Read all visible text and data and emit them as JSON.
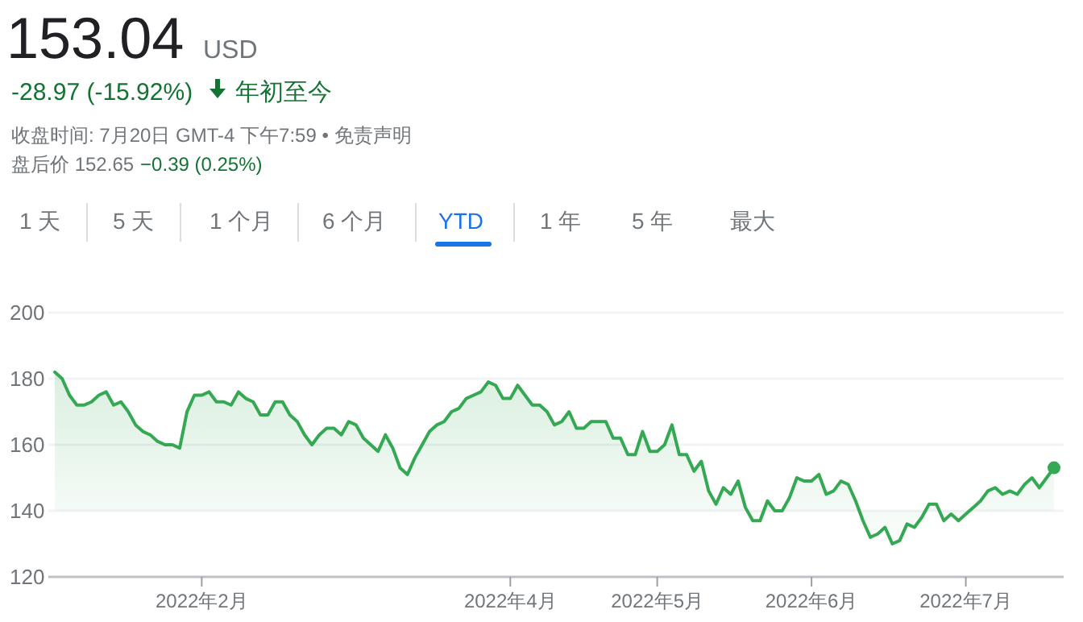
{
  "chart_data": {
    "type": "line",
    "title": "153.04",
    "annotations": [
      "USD",
      "-28.97 (-15.92%)",
      "年初至今",
      "收盘时间: 7月20日 GMT-4 下午7:59 • 免责声明",
      "盘后价 152.65",
      "−0.39 (0.25%)",
      "1 天",
      "5 天",
      "1 个月",
      "6 个月",
      "YTD",
      "1 年",
      "5 年",
      "最大"
    ],
    "categories": [
      null,
      null,
      null,
      null,
      null,
      null,
      null,
      null,
      null,
      null,
      null,
      null,
      null,
      null,
      null,
      null,
      null,
      null,
      null,
      null,
      "2022年2月",
      null,
      null,
      null,
      null,
      null,
      null,
      null,
      null,
      null,
      null,
      null,
      null,
      null,
      null,
      null,
      null,
      null,
      null,
      null,
      null,
      null,
      null,
      null,
      null,
      null,
      null,
      null,
      null,
      null,
      null,
      null,
      null,
      null,
      null,
      null,
      null,
      null,
      null,
      null,
      null,
      null,
      "2022年4月",
      null,
      null,
      null,
      null,
      null,
      null,
      null,
      null,
      null,
      null,
      null,
      null,
      null,
      null,
      null,
      null,
      null,
      null,
      null,
      "2022年5月",
      null,
      null,
      null,
      null,
      null,
      null,
      null,
      null,
      null,
      null,
      null,
      null,
      null,
      null,
      null,
      null,
      null,
      null,
      null,
      null,
      "2022年6月",
      null,
      null,
      null,
      null,
      null,
      null,
      null,
      null,
      null,
      null,
      null,
      null,
      null,
      null,
      null,
      null,
      null,
      null,
      null,
      null,
      "2022年7月",
      null,
      null,
      null,
      null,
      null,
      null,
      null,
      null,
      null,
      null,
      null,
      null
    ],
    "series": [
      {
        "color": "#34a853",
        "values": [
          182,
          180,
          175,
          172,
          172,
          173,
          175,
          176,
          172,
          173,
          170,
          166,
          164,
          163,
          161,
          160,
          160,
          159,
          170,
          175,
          175,
          176,
          173,
          173,
          172,
          176,
          174,
          173,
          169,
          169,
          173,
          173,
          169,
          167,
          163,
          160,
          163,
          165,
          165,
          163,
          167,
          166,
          162,
          160,
          158,
          163,
          159,
          153,
          151,
          156,
          160,
          164,
          166,
          167,
          170,
          171,
          174,
          175,
          176,
          179,
          178,
          174,
          174,
          178,
          175,
          172,
          172,
          170,
          166,
          167,
          170,
          165,
          165,
          167,
          167,
          167,
          162,
          162,
          157,
          157,
          164,
          158,
          158,
          160,
          166,
          157,
          157,
          152,
          155,
          146,
          142,
          147,
          145,
          149,
          141,
          137,
          137,
          143,
          140,
          140,
          144,
          150,
          149,
          149,
          151,
          145,
          146,
          149,
          148,
          143,
          137,
          132,
          133,
          135,
          130,
          131,
          136,
          135,
          138,
          142,
          142,
          137,
          139,
          137,
          139,
          141,
          143,
          146,
          147,
          145,
          146,
          145,
          148,
          150,
          147,
          150,
          153.04
        ]
      }
    ],
    "ylim": [
      120,
      200
    ],
    "yticks": [
      120,
      140,
      160,
      180,
      200
    ],
    "grid": "y"
  }
}
